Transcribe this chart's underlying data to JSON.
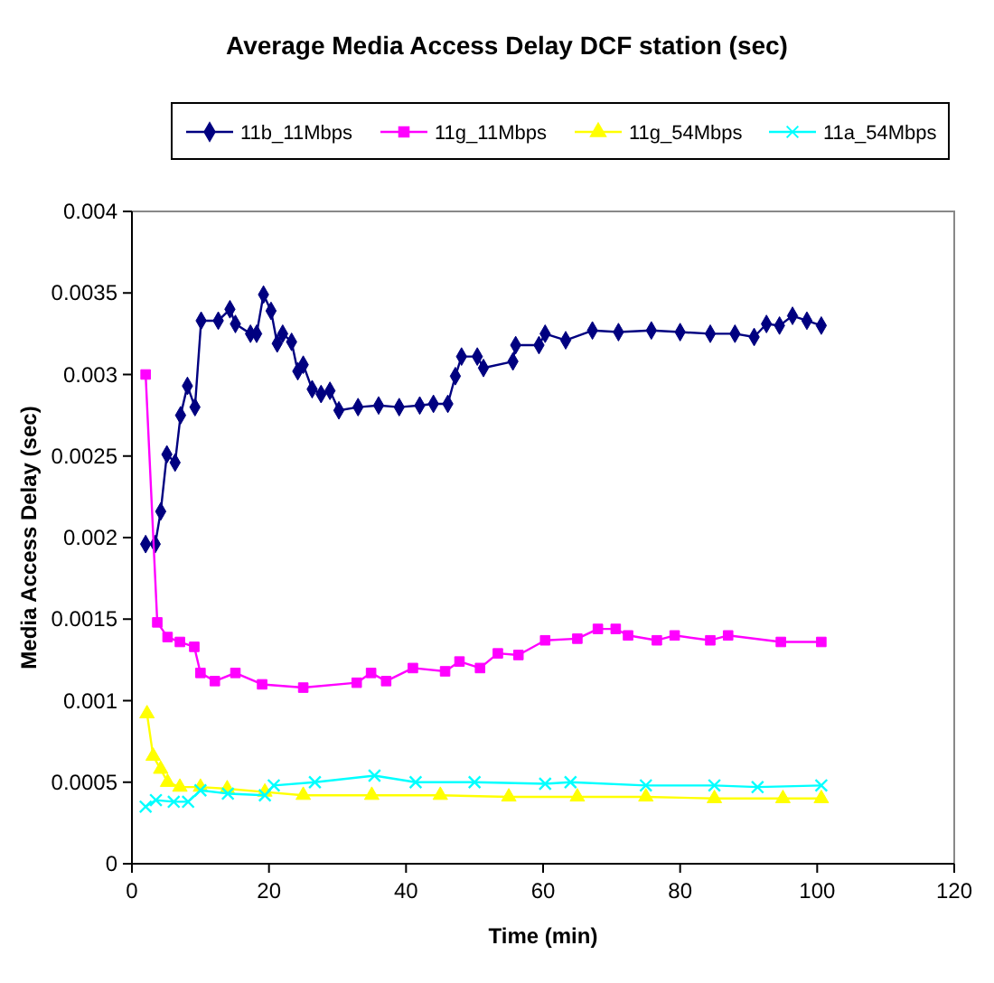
{
  "chart_data": {
    "type": "line",
    "title": "Average Media Access Delay DCF station (sec)",
    "xlabel": "Time (min)",
    "ylabel": "Media Access Delay (sec)",
    "xlim": [
      0,
      120
    ],
    "xticks": [
      0,
      20,
      40,
      60,
      80,
      100,
      120
    ],
    "ylim": [
      0,
      0.004
    ],
    "yticks": [
      0,
      0.0005,
      0.001,
      0.0015,
      0.002,
      0.0025,
      0.003,
      0.0035,
      0.004
    ],
    "grid": false,
    "legend": "top",
    "line_style": "solid",
    "series": [
      {
        "name": "11b_11Mbps",
        "color": "#000080",
        "marker": "diamond",
        "x": [
          2,
          3.4,
          4.2,
          5.1,
          6.3,
          7.1,
          8.1,
          9.2,
          10.1,
          12.6,
          14.3,
          15.1,
          17.3,
          18.2,
          19.2,
          20.3,
          21.2,
          22,
          23.3,
          24.2,
          25,
          26.3,
          27.6,
          28.9,
          30.2,
          33,
          36,
          39,
          42,
          44,
          46.1,
          47.2,
          48.1,
          50.4,
          51.3,
          55.6,
          56,
          59.4,
          60.3,
          63.3,
          67.2,
          71,
          75.8,
          80,
          84.4,
          88,
          90.8,
          92.6,
          94.5,
          96.4,
          98.5,
          100.6
        ],
        "values": [
          0.00196,
          0.00196,
          0.00216,
          0.00251,
          0.00246,
          0.00275,
          0.00293,
          0.0028,
          0.00333,
          0.00333,
          0.0034,
          0.00331,
          0.00325,
          0.00325,
          0.00349,
          0.00339,
          0.00319,
          0.00325,
          0.0032,
          0.00302,
          0.00306,
          0.00291,
          0.00288,
          0.0029,
          0.00278,
          0.0028,
          0.00281,
          0.0028,
          0.00281,
          0.00282,
          0.00282,
          0.00299,
          0.00311,
          0.00311,
          0.00304,
          0.00308,
          0.00318,
          0.00318,
          0.00325,
          0.00321,
          0.00327,
          0.00326,
          0.00327,
          0.00326,
          0.00325,
          0.00325,
          0.00323,
          0.00331,
          0.0033,
          0.00336,
          0.00333,
          0.0033
        ]
      },
      {
        "name": "11g_11Mbps",
        "color": "#ff00ff",
        "marker": "square",
        "x": [
          2,
          3.7,
          5.2,
          7,
          9.1,
          10,
          12.1,
          15.1,
          19,
          25,
          32.8,
          34.9,
          37.1,
          41,
          45.7,
          47.8,
          50.8,
          53.4,
          56.4,
          60.3,
          65,
          68,
          70.6,
          72.4,
          76.6,
          79.2,
          84.4,
          87,
          94.7,
          100.6
        ],
        "values": [
          0.003,
          0.00148,
          0.00139,
          0.00136,
          0.00133,
          0.00117,
          0.00112,
          0.00117,
          0.0011,
          0.00108,
          0.00111,
          0.00117,
          0.00112,
          0.0012,
          0.00118,
          0.00124,
          0.0012,
          0.00129,
          0.00128,
          0.00137,
          0.00138,
          0.00144,
          0.00144,
          0.0014,
          0.00137,
          0.0014,
          0.00137,
          0.0014,
          0.00136,
          0.00136
        ]
      },
      {
        "name": "11g_54Mbps",
        "color": "#ffff00",
        "marker": "triangle",
        "x": [
          2.2,
          3.1,
          4.2,
          5.2,
          7,
          10,
          13.9,
          19.4,
          25,
          35,
          45,
          55,
          65,
          75,
          85,
          95,
          100.6
        ],
        "values": [
          0.00092,
          0.00066,
          0.00058,
          0.0005,
          0.00047,
          0.00047,
          0.00046,
          0.00044,
          0.00042,
          0.00042,
          0.00042,
          0.00041,
          0.00041,
          0.00041,
          0.0004,
          0.0004,
          0.0004
        ]
      },
      {
        "name": "11a_54Mbps",
        "color": "#00ffff",
        "marker": "cross",
        "x": [
          2,
          3.5,
          6.1,
          8.2,
          10,
          14,
          19.4,
          20.7,
          26.7,
          35.4,
          41.4,
          50,
          60.3,
          64,
          75,
          85,
          91.3,
          100.6
        ],
        "values": [
          0.00035,
          0.00039,
          0.00038,
          0.00038,
          0.00045,
          0.00043,
          0.00042,
          0.00048,
          0.0005,
          0.00054,
          0.0005,
          0.0005,
          0.00049,
          0.0005,
          0.00048,
          0.00048,
          0.00047,
          0.00048
        ]
      }
    ]
  }
}
